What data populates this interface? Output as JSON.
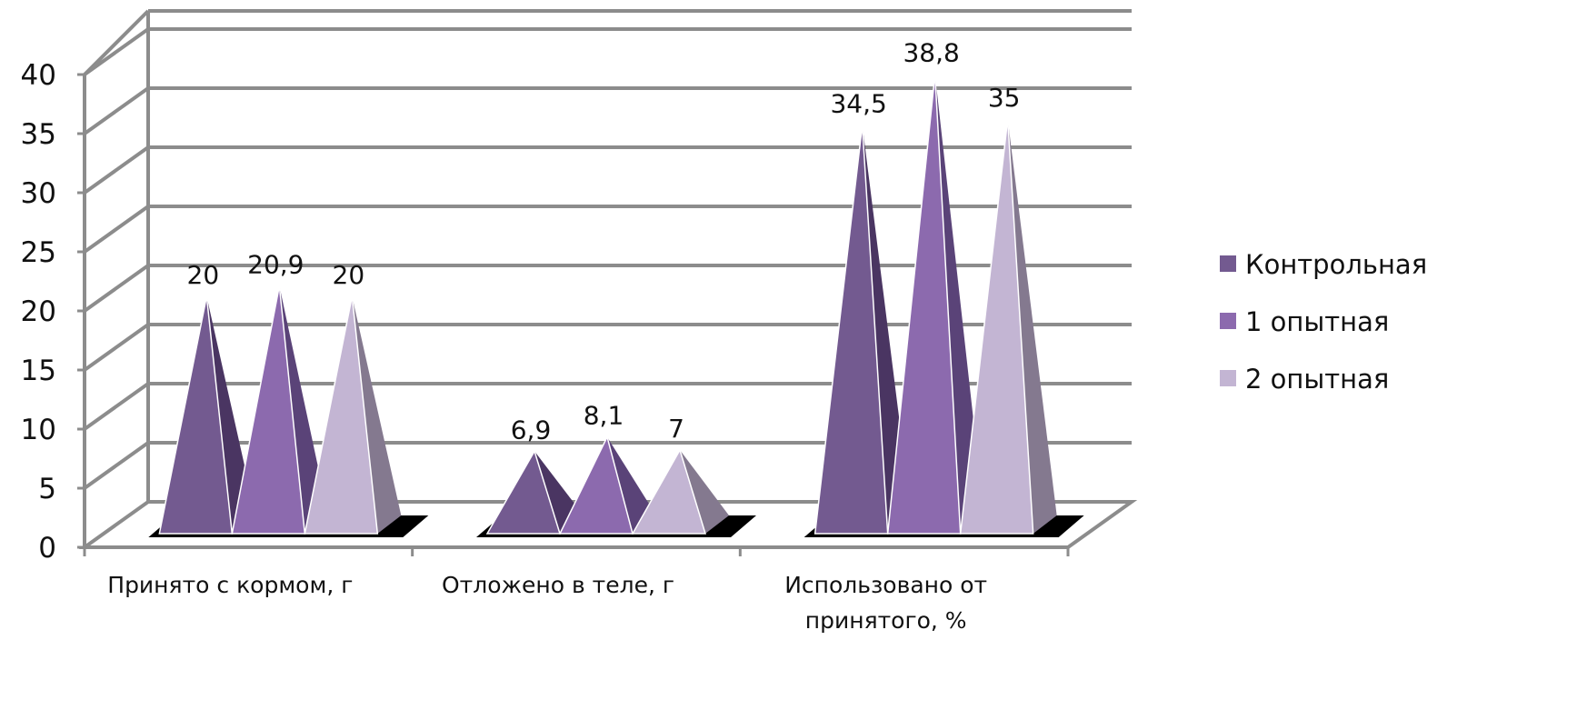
{
  "chart_data": {
    "type": "bar",
    "style": "3d-pyramid",
    "categories": [
      [
        "Принято с кормом, г"
      ],
      [
        "Отложено в теле, г"
      ],
      [
        "Использовано от",
        "принятого, %"
      ]
    ],
    "series": [
      {
        "name": "Контрольная",
        "values": [
          20,
          6.9,
          34.5
        ],
        "labels": [
          "20",
          "6,9",
          "34,5"
        ],
        "color": "#735A90",
        "dark": "#4A3562"
      },
      {
        "name": "1 опытная",
        "values": [
          20.9,
          8.1,
          38.8
        ],
        "labels": [
          "20,9",
          "8,1",
          "38,8"
        ],
        "color": "#8C6AAE",
        "dark": "#5A4378"
      },
      {
        "name": "2 опытная",
        "values": [
          20,
          7,
          35
        ],
        "labels": [
          "20",
          "7",
          "35"
        ],
        "color": "#C3B5D3",
        "dark": "#84798F"
      }
    ],
    "yticks": [
      "0",
      "5",
      "10",
      "15",
      "20",
      "25",
      "30",
      "35",
      "40"
    ],
    "ylim": [
      0,
      40
    ],
    "grid": true,
    "legend_position": "right"
  }
}
